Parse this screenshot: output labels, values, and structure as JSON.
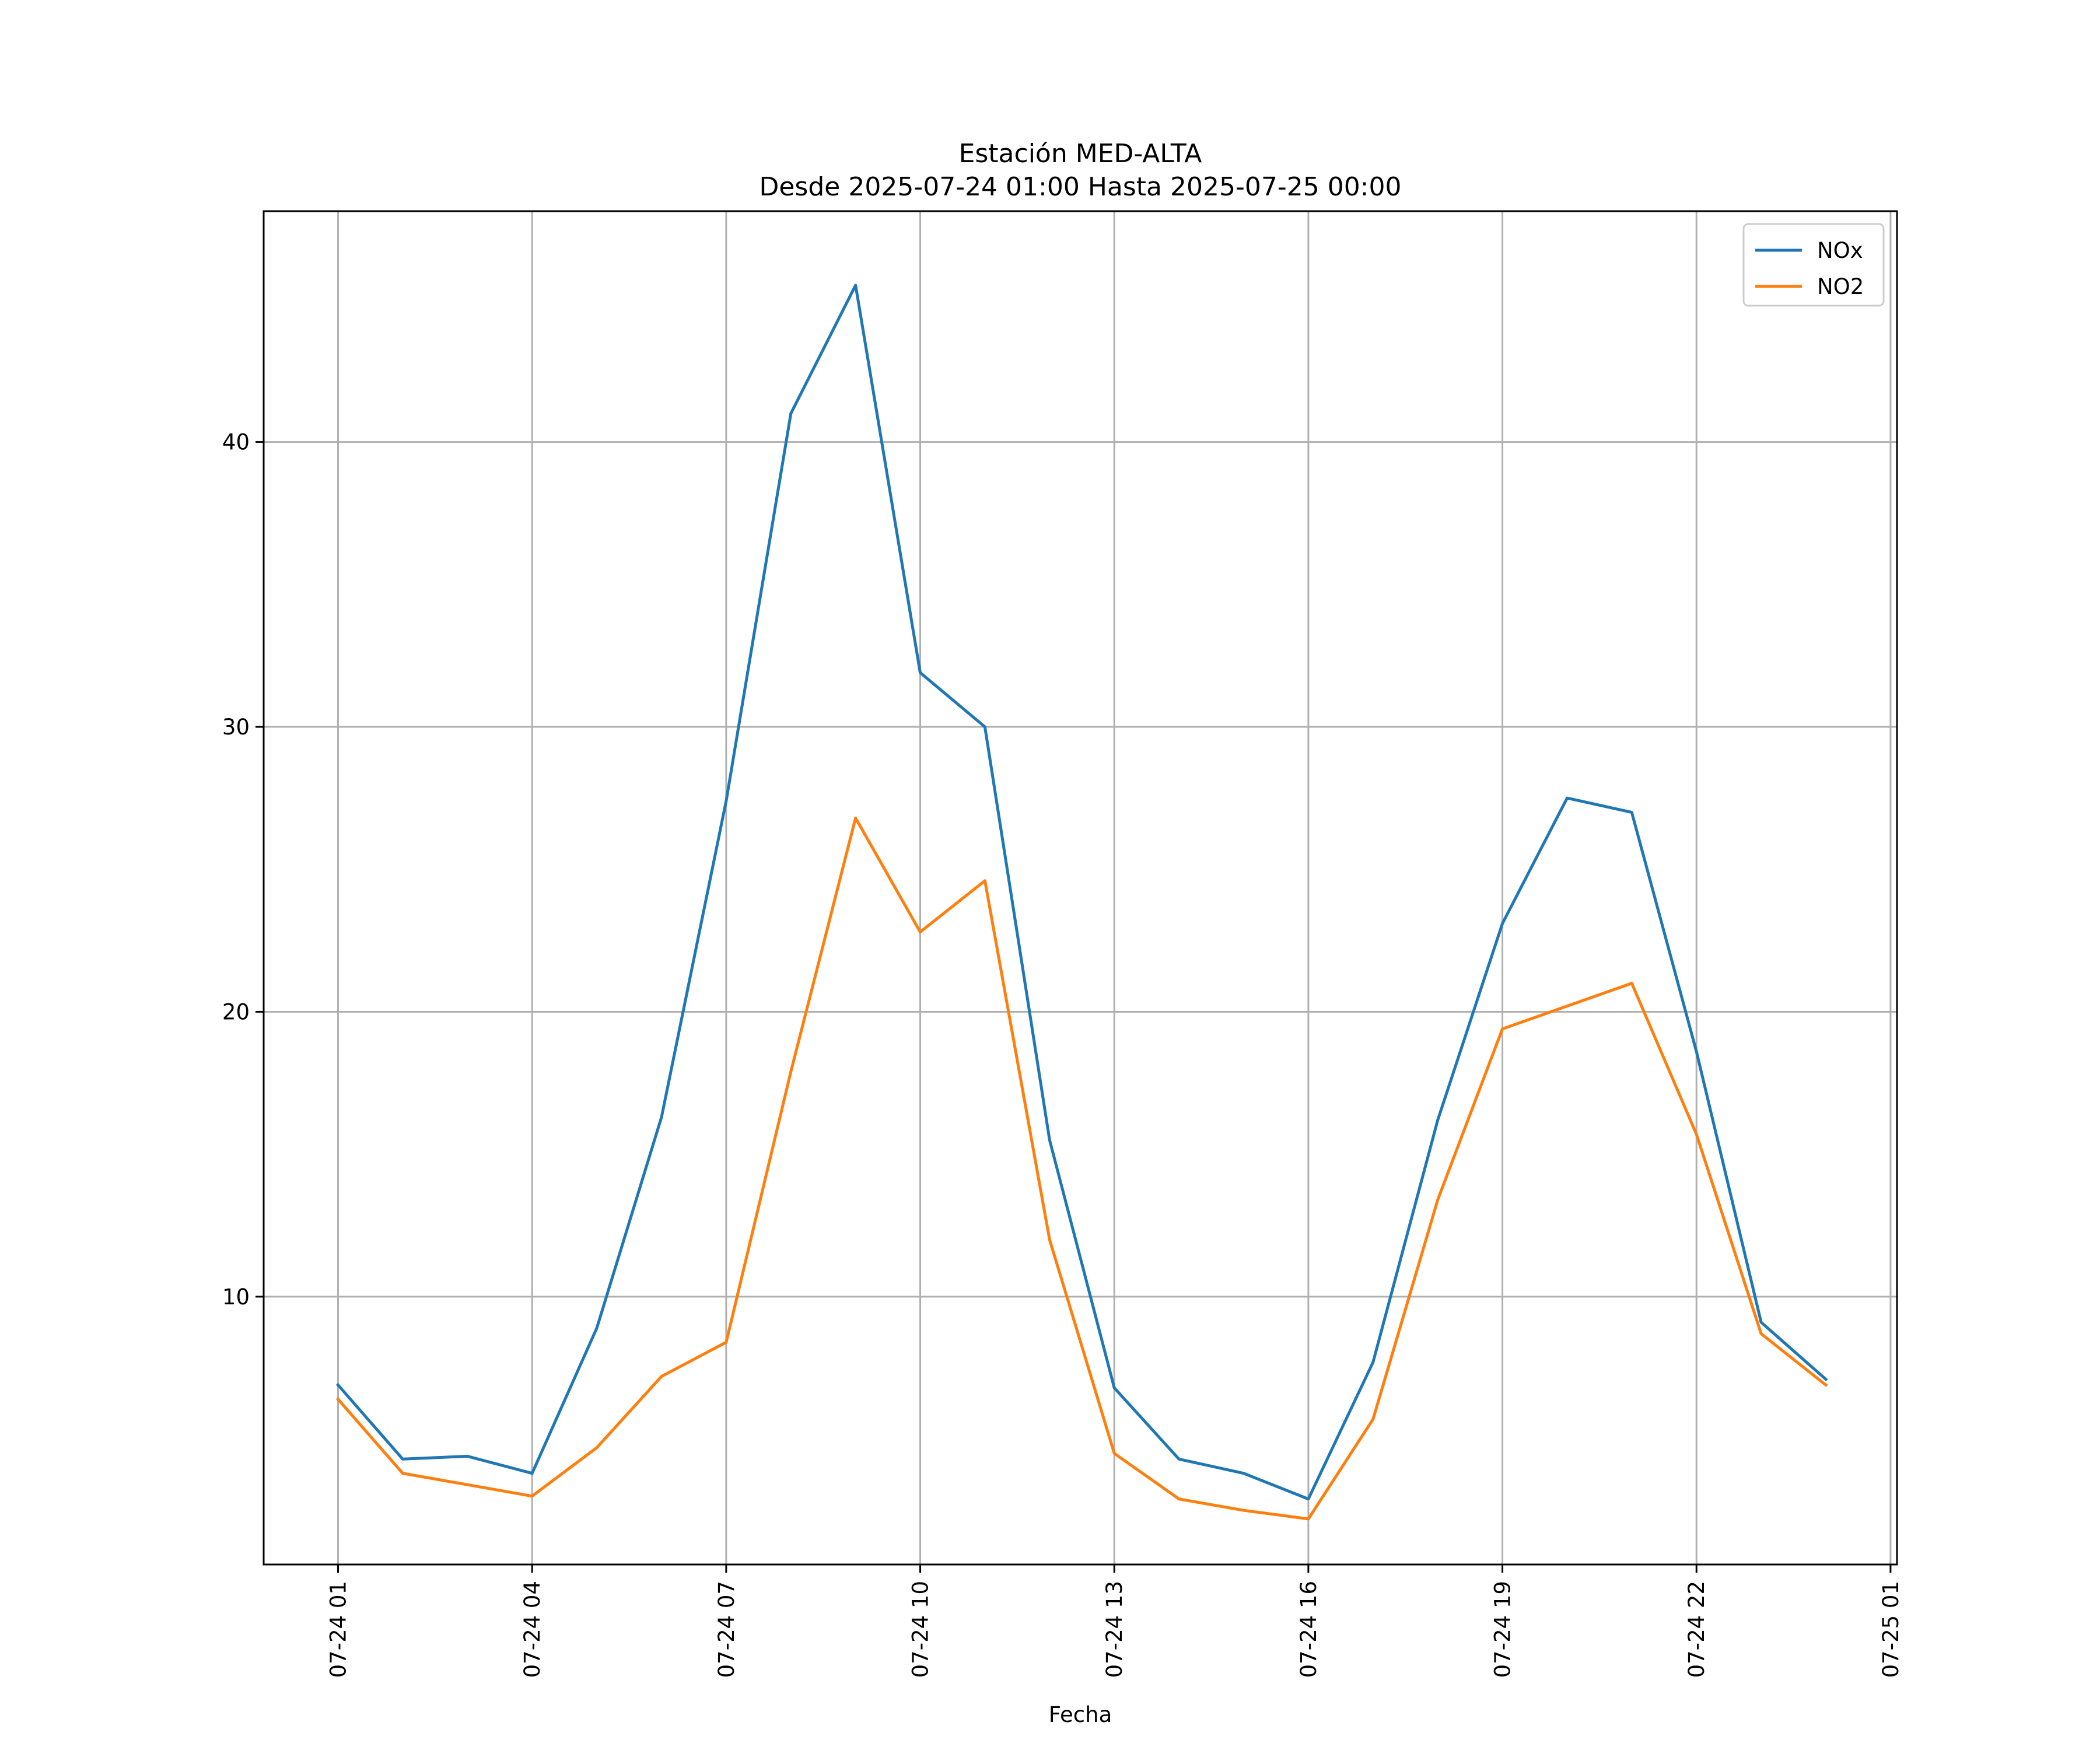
{
  "chart_data": {
    "type": "line",
    "title": "Estación MED-ALTA",
    "subtitle": "Desde 2025-07-24 01:00 Hasta 2025-07-25 00:00",
    "xlabel": "Fecha",
    "ylabel": "",
    "x": [
      "2025-07-24 01:00",
      "2025-07-24 02:00",
      "2025-07-24 03:00",
      "2025-07-24 04:00",
      "2025-07-24 05:00",
      "2025-07-24 06:00",
      "2025-07-24 07:00",
      "2025-07-24 08:00",
      "2025-07-24 09:00",
      "2025-07-24 10:00",
      "2025-07-24 11:00",
      "2025-07-24 12:00",
      "2025-07-24 13:00",
      "2025-07-24 14:00",
      "2025-07-24 15:00",
      "2025-07-24 16:00",
      "2025-07-24 17:00",
      "2025-07-24 18:00",
      "2025-07-24 19:00",
      "2025-07-24 20:00",
      "2025-07-24 21:00",
      "2025-07-24 22:00",
      "2025-07-24 23:00",
      "2025-07-25 00:00"
    ],
    "series": [
      {
        "name": "NOx",
        "color": "#1f77b4",
        "values": [
          6.9,
          4.3,
          4.4,
          3.8,
          8.9,
          16.3,
          27.4,
          41.0,
          45.5,
          31.9,
          30.0,
          15.5,
          6.8,
          4.3,
          3.8,
          2.9,
          7.7,
          16.2,
          23.1,
          27.5,
          27.0,
          18.6,
          9.1,
          7.1
        ]
      },
      {
        "name": "NO2",
        "color": "#ff7f0e",
        "values": [
          6.4,
          3.8,
          3.4,
          3.0,
          4.7,
          7.2,
          8.4,
          17.9,
          26.8,
          22.8,
          24.6,
          12.0,
          4.5,
          2.9,
          2.5,
          2.2,
          5.7,
          13.4,
          19.4,
          20.2,
          21.0,
          15.7,
          8.7,
          6.9
        ]
      }
    ],
    "xticks": [
      "07-24 01",
      "07-24 04",
      "07-24 07",
      "07-24 10",
      "07-24 13",
      "07-24 16",
      "07-24 19",
      "07-24 22",
      "07-25 01"
    ],
    "xtick_hours": [
      0,
      3,
      6,
      9,
      12,
      15,
      18,
      21,
      24
    ],
    "xlim_hours": [
      -1.15,
      24.1
    ],
    "yticks": [
      10,
      20,
      30,
      40
    ],
    "ylim": [
      0.6,
      48.1
    ],
    "grid": true,
    "legend_position": "upper right"
  }
}
